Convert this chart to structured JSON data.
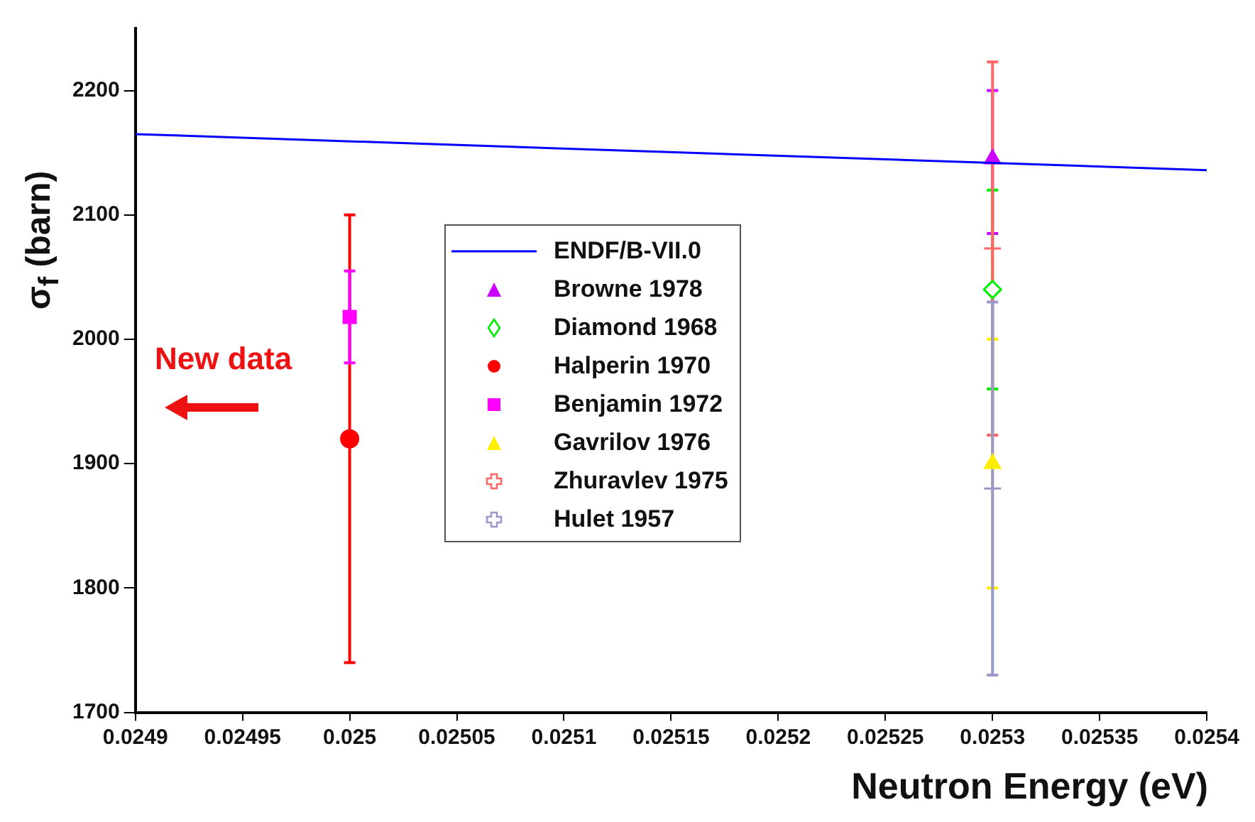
{
  "chart_data": {
    "type": "scatter",
    "xlabel": "Neutron Energy (eV)",
    "ylabel": "σ$_{f}$ (barn)",
    "xlim": [
      0.0249,
      0.0254
    ],
    "xticks": [
      0.0249,
      0.02495,
      0.025,
      0.02505,
      0.0251,
      0.02515,
      0.0252,
      0.02525,
      0.0253,
      0.02535,
      0.0254
    ],
    "ylim": [
      1700,
      2250
    ],
    "yticks": [
      1700,
      1800,
      1900,
      2000,
      2100,
      2200
    ],
    "legend": "center",
    "annotations": [
      "New data"
    ],
    "series": [
      {
        "name": "ENDF/B-VII.0",
        "type": "line",
        "marker": "none",
        "color": "#0000ff",
        "x": [
          0.0249,
          0.0254
        ],
        "values": [
          2165,
          2136
        ]
      },
      {
        "name": "Browne 1978",
        "marker": "triangle",
        "color": "#cc00ff",
        "x": [
          0.0253
        ],
        "values": [
          2145
        ],
        "errors": [
          [
            2085,
            2200
          ]
        ]
      },
      {
        "name": "Diamond 1968",
        "marker": "diamond",
        "color": "#00ee00",
        "x": [
          0.0253
        ],
        "values": [
          2040
        ],
        "errors": [
          [
            1960,
            2120
          ]
        ]
      },
      {
        "name": "Halperin 1970",
        "marker": "circle",
        "color": "#ff0000",
        "x": [
          0.025
        ],
        "values": [
          1920
        ],
        "errors": [
          [
            1740,
            2100
          ]
        ]
      },
      {
        "name": "Benjamin 1972",
        "marker": "square",
        "color": "#ff00ff",
        "x": [
          0.025
        ],
        "values": [
          2018
        ],
        "errors": [
          [
            1981,
            2055
          ]
        ]
      },
      {
        "name": "Gavrilov 1976",
        "marker": "triangle",
        "color": "#ffee00",
        "x": [
          0.0253
        ],
        "values": [
          1900
        ],
        "errors": [
          [
            1800,
            2000
          ]
        ]
      },
      {
        "name": "Zhuravlev 1975",
        "marker": "cross",
        "color": "#ff6666",
        "x": [
          0.0253
        ],
        "values": [
          2073
        ],
        "errors": [
          [
            1923,
            2223
          ]
        ]
      },
      {
        "name": "Hulet 1957",
        "marker": "cross",
        "color": "#9999cc",
        "x": [
          0.0253
        ],
        "values": [
          1880
        ],
        "errors": [
          [
            1730,
            2030
          ]
        ]
      }
    ]
  }
}
